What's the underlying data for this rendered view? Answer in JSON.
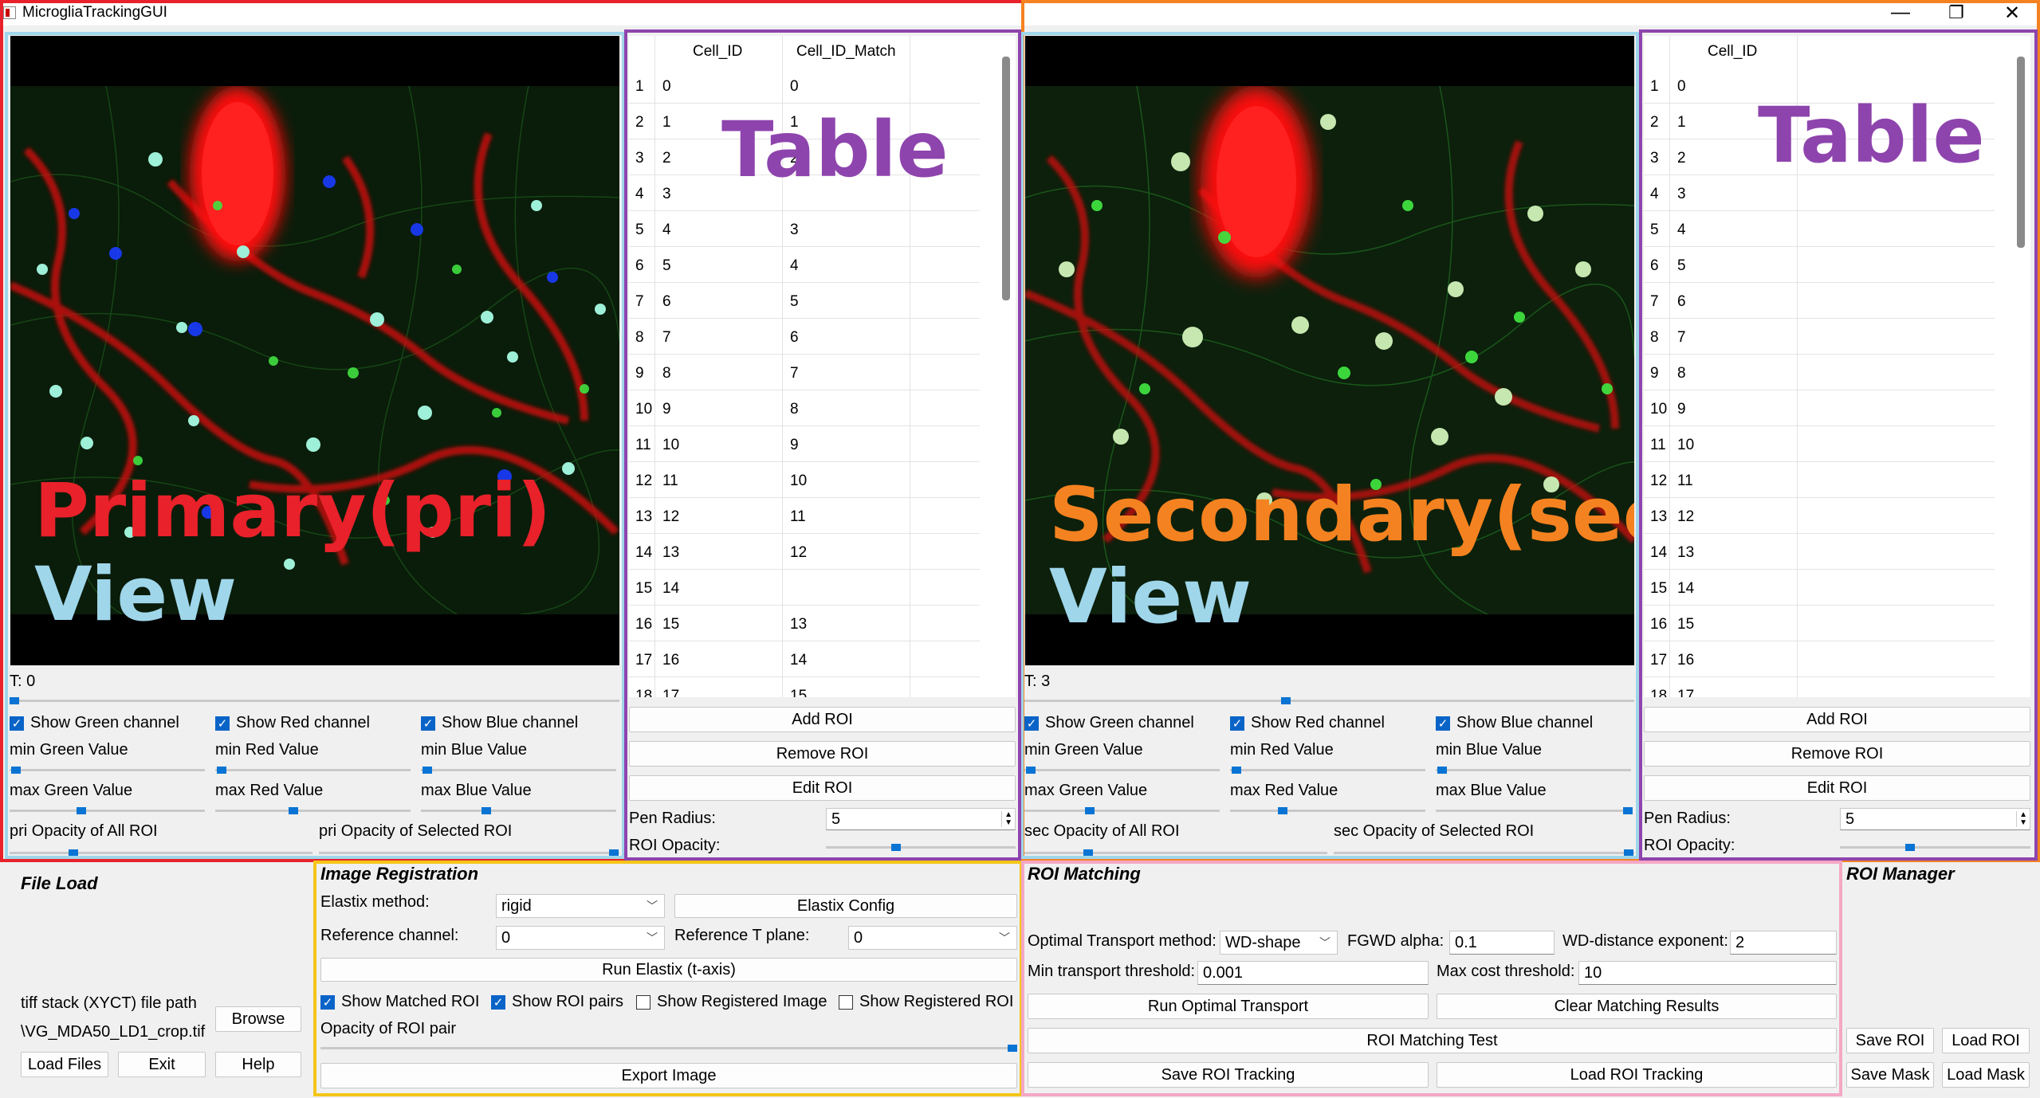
{
  "window": {
    "title": "MicrogliaTrackingGUI",
    "controls": [
      "—",
      "❐",
      "✕"
    ]
  },
  "annotation_colors": {
    "red": "#e8212a",
    "orange": "#f58220",
    "light_blue": "#9fd6ea",
    "purple": "#8e44ad",
    "yellow": "#f5c518",
    "pink": "#f4a7c4"
  },
  "primary": {
    "overlay_line1": "Primary(pri)",
    "overlay_line2": "View",
    "t_label": "T: 0",
    "t_fraction": 0.0,
    "show_green": "Show Green channel",
    "show_red": "Show Red channel",
    "show_blue": "Show Blue channel",
    "min_green": "min Green Value",
    "min_red": "min Red Value",
    "min_blue": "min Blue Value",
    "max_green": "max Green Value",
    "max_red": "max Red Value",
    "max_blue": "max Blue Value",
    "opacity_all": "pri Opacity of All ROI",
    "opacity_selected": "pri Opacity of Selected ROI"
  },
  "secondary": {
    "overlay_line1": "Secondary(sec)",
    "overlay_line2": "View",
    "t_label": "T: 3",
    "show_green": "Show Green channel",
    "show_red": "Show Red channel",
    "show_blue": "Show Blue channel",
    "min_green": "min Green Value",
    "min_red": "min Red Value",
    "min_blue": "min Blue Value",
    "max_green": "max Green Value",
    "max_red": "max Red Value",
    "max_blue": "max Blue Value",
    "opacity_all": "sec Opacity of All ROI",
    "opacity_selected": "sec Opacity of Selected ROI"
  },
  "pri_table": {
    "overlay": "Table",
    "headers": [
      "Cell_ID",
      "Cell_ID_Match"
    ],
    "rows": [
      [
        "1",
        "0",
        "0"
      ],
      [
        "2",
        "1",
        "1"
      ],
      [
        "3",
        "2",
        "2"
      ],
      [
        "4",
        "3",
        ""
      ],
      [
        "5",
        "4",
        "3"
      ],
      [
        "6",
        "5",
        "4"
      ],
      [
        "7",
        "6",
        "5"
      ],
      [
        "8",
        "7",
        "6"
      ],
      [
        "9",
        "8",
        "7"
      ],
      [
        "10",
        "9",
        "8"
      ],
      [
        "11",
        "10",
        "9"
      ],
      [
        "12",
        "11",
        "10"
      ],
      [
        "13",
        "12",
        "11"
      ],
      [
        "14",
        "13",
        "12"
      ],
      [
        "15",
        "14",
        ""
      ],
      [
        "16",
        "15",
        "13"
      ],
      [
        "17",
        "16",
        "14"
      ],
      [
        "18",
        "17",
        "15"
      ]
    ],
    "add_roi": "Add ROI",
    "remove_roi": "Remove ROI",
    "edit_roi": "Edit ROI",
    "pen_radius_label": "Pen Radius:",
    "pen_radius_value": "5",
    "roi_opacity_label": "ROI Opacity:"
  },
  "sec_table": {
    "overlay": "Table",
    "headers": [
      "Cell_ID"
    ],
    "rows": [
      [
        "1",
        "0"
      ],
      [
        "2",
        "1"
      ],
      [
        "3",
        "2"
      ],
      [
        "4",
        "3"
      ],
      [
        "5",
        "4"
      ],
      [
        "6",
        "5"
      ],
      [
        "7",
        "6"
      ],
      [
        "8",
        "7"
      ],
      [
        "9",
        "8"
      ],
      [
        "10",
        "9"
      ],
      [
        "11",
        "10"
      ],
      [
        "12",
        "11"
      ],
      [
        "13",
        "12"
      ],
      [
        "14",
        "13"
      ],
      [
        "15",
        "14"
      ],
      [
        "16",
        "15"
      ],
      [
        "17",
        "16"
      ],
      [
        "18",
        "17"
      ]
    ],
    "add_roi": "Add ROI",
    "remove_roi": "Remove ROI",
    "edit_roi": "Edit ROI",
    "pen_radius_label": "Pen Radius:",
    "pen_radius_value": "5",
    "roi_opacity_label": "ROI Opacity:"
  },
  "file_load": {
    "title": "File Load",
    "path_label": "tiff stack (XYCT) file path",
    "path_value": "\\VG_MDA50_LD1_crop.tif",
    "browse": "Browse",
    "load_files": "Load Files",
    "exit": "Exit",
    "help": "Help"
  },
  "registration": {
    "title": "Image Registration",
    "elastix_method_label": "Elastix method:",
    "elastix_method_value": "rigid",
    "elastix_config": "Elastix Config",
    "ref_channel_label": "Reference channel:",
    "ref_channel_value": "0",
    "ref_t_label": "Reference T plane:",
    "ref_t_value": "0",
    "run_elastix": "Run Elastix (t-axis)",
    "show_matched_roi": "Show Matched ROI",
    "show_roi_pairs": "Show ROI pairs",
    "show_registered_image": "Show Registered Image",
    "show_registered_roi": "Show Registered ROI",
    "opacity_roi_pair": "Opacity of ROI pair",
    "export_image": "Export Image"
  },
  "matching": {
    "title": "ROI Matching",
    "ot_method_label": "Optimal Transport method:",
    "ot_method_value": "WD-shape",
    "fgwd_label": "FGWD alpha:",
    "fgwd_value": "0.1",
    "wd_exp_label": "WD-distance exponent:",
    "wd_exp_value": "2",
    "min_transport_label": "Min transport threshold:",
    "min_transport_value": "0.001",
    "max_cost_label": "Max cost threshold:",
    "max_cost_value": "10",
    "run_ot": "Run Optimal Transport",
    "clear_results": "Clear Matching Results",
    "matching_test": "ROI Matching Test",
    "save_tracking": "Save ROI Tracking",
    "load_tracking": "Load ROI Tracking"
  },
  "roi_manager": {
    "title": "ROI Manager",
    "save_roi": "Save ROI",
    "load_roi": "Load ROI",
    "save_mask": "Save Mask",
    "load_mask": "Load Mask"
  }
}
